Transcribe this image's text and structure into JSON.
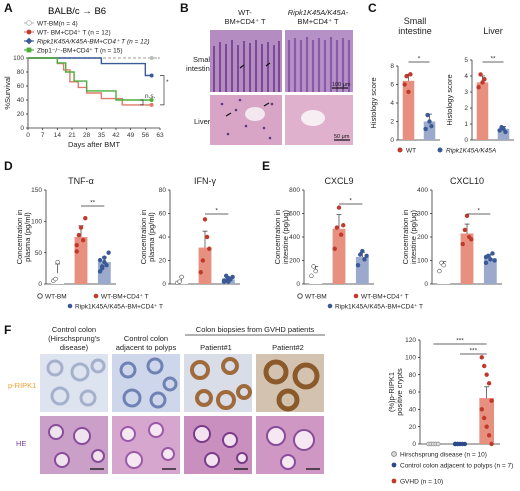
{
  "colors": {
    "wt_bm": "#bdbdbd",
    "wt_cd4": "#e07a6a",
    "ripk1": "#3a5a97",
    "zbp1": "#4cad3c",
    "gvhd_point": "#c0392b",
    "prip_label": "#f0a030",
    "he_label": "#7a3c9a"
  },
  "panel_A": {
    "letter": "A",
    "title": "BALB/c → B6",
    "legend": [
      "WT-BM(n = 4)",
      "WT- BM+CD4⁺ T (n = 12)",
      "Ripk1K45A/K45A-BM+CD4⁺ T (n = 12)",
      "Zbp1⁻/⁻-BM+CD4⁺ T (n = 15)"
    ],
    "sig_labels": [
      "*",
      "n.s."
    ]
  },
  "panel_B": {
    "letter": "B",
    "col_headers": [
      "WT-\nBM+CD4⁺ T",
      "Ripk1K45A/K45A-\nBM+CD4⁺ T"
    ],
    "col_header_lines": [
      [
        "WT-",
        "BM+CD4⁺ T"
      ],
      [
        "Ripk1K45A/K45A-",
        "BM+CD4⁺ T"
      ]
    ],
    "row_labels": [
      [
        "Small",
        "intestine"
      ],
      [
        "Liver"
      ]
    ],
    "scalebars": [
      "100 μm",
      "50 μm"
    ]
  },
  "panel_C": {
    "letter": "C",
    "legend": [
      "WT",
      "Ripk1K45A/K45A"
    ]
  },
  "panel_D": {
    "letter": "D",
    "legend": [
      "WT-BM",
      "WT-BM+CD4⁺ T",
      "Ripk1K45A/K45A-BM+CD4⁺ T"
    ]
  },
  "panel_E": {
    "letter": "E",
    "legend": [
      "WT-BM",
      "WT-BM+CD4⁺ T",
      "Ripk1K45A/K45A-BM+CD4⁺ T"
    ]
  },
  "panel_F": {
    "letter": "F",
    "col_headers": [
      [
        "Control colon",
        "(Hirschsprung's",
        "disease)"
      ],
      [
        "Control colon",
        "adjacent to polyps"
      ],
      [
        "Patient#1"
      ],
      [
        "Patient#2"
      ]
    ],
    "group_header": "Colon biopsies from GVHD patients",
    "row_labels": [
      "p-RIPK1",
      "HE"
    ],
    "legend": [
      "Hirschsprung disease (n = 10)",
      "Control colon adjacent to polyps (n = 7)",
      "GVHD (n = 10)"
    ]
  },
  "chart_data": [
    {
      "id": "A",
      "type": "line",
      "xlabel": "Days after BMT",
      "ylabel": "%Survival",
      "xticks": [
        0,
        7,
        14,
        21,
        28,
        35,
        42,
        49,
        56,
        63
      ],
      "yticks": [
        0,
        20,
        40,
        60,
        80,
        100
      ],
      "xlim": [
        0,
        63
      ],
      "ylim": [
        0,
        100
      ],
      "series": [
        {
          "name": "WT-BM(n = 4)",
          "color": "#bdbdbd",
          "x": [
            0,
            63
          ],
          "y": [
            100,
            100
          ]
        },
        {
          "name": "WT- BM+CD4⁺ T (n = 12)",
          "color": "#e07a6a",
          "x": [
            0,
            14,
            17,
            20,
            24,
            28,
            35,
            45,
            56
          ],
          "y": [
            100,
            92,
            83,
            66,
            58,
            50,
            42,
            33,
            33
          ]
        },
        {
          "name": "Ripk1K45A/K45A-BM+CD4⁺ T (n = 12)",
          "color": "#3a5a97",
          "x": [
            0,
            35,
            56
          ],
          "y": [
            100,
            92,
            75
          ]
        },
        {
          "name": "Zbp1⁻/⁻-BM+CD4⁺ T (n = 15)",
          "color": "#4cad3c",
          "x": [
            0,
            14,
            18,
            22,
            28,
            42,
            56
          ],
          "y": [
            100,
            93,
            80,
            67,
            53,
            40,
            40
          ]
        }
      ]
    },
    {
      "id": "C-small-intestine",
      "type": "bar",
      "title": "Small intestine",
      "ylabel": "Histology score",
      "yticks": [
        0,
        2,
        4,
        6,
        8
      ],
      "ylim": [
        0,
        8
      ],
      "categories": [
        "WT",
        "Ripk1K45A/K45A"
      ],
      "values": [
        6.4,
        2.0
      ],
      "errors": [
        0.7,
        0.8
      ],
      "points": [
        [
          6.0,
          6.9,
          5.2,
          7.1
        ],
        [
          1.2,
          2.7,
          2.0,
          1.5
        ]
      ],
      "sig": "*"
    },
    {
      "id": "C-liver",
      "type": "bar",
      "title": "Liver",
      "ylabel": "Histology score",
      "yticks": [
        0,
        1,
        2,
        3,
        4,
        5
      ],
      "ylim": [
        0,
        5
      ],
      "categories": [
        "WT",
        "Ripk1K45A/K45A"
      ],
      "values": [
        3.6,
        0.7
      ],
      "errors": [
        0.4,
        0.15
      ],
      "points": [
        [
          3.3,
          4.1,
          3.6,
          3.8
        ],
        [
          0.6,
          0.8,
          0.7,
          0.5
        ]
      ],
      "sig": "**"
    },
    {
      "id": "D-TNF",
      "type": "bar",
      "title": "TNF-α",
      "ylabel": "Concentration in plasma (pg/ml)",
      "yticks": [
        0,
        50,
        100,
        150
      ],
      "ylim": [
        0,
        150
      ],
      "categories": [
        "WT-BM",
        "WT-BM+CD4⁺ T",
        "Ripk1K45A/K45A-BM+CD4⁺ T"
      ],
      "values": [
        17,
        75,
        35
      ],
      "errors": [
        15,
        18,
        8
      ],
      "points": [
        [
          5,
          8,
          35
        ],
        [
          52,
          78,
          90,
          70,
          105,
          62
        ],
        [
          20,
          28,
          42,
          30,
          50,
          38,
          25,
          35
        ]
      ],
      "sig": "**"
    },
    {
      "id": "D-IFN",
      "type": "bar",
      "title": "IFN-γ",
      "ylabel": "Concentration in plasma (pg/ml)",
      "yticks": [
        0,
        20,
        40,
        60,
        80
      ],
      "ylim": [
        0,
        80
      ],
      "categories": [
        "WT-BM",
        "WT-BM+CD4⁺ T",
        "Ripk1K45A/K45A-BM+CD4⁺ T"
      ],
      "values": [
        3,
        31,
        4
      ],
      "errors": [
        3,
        14,
        2
      ],
      "points": [
        [
          1,
          2,
          6
        ],
        [
          10,
          20,
          55,
          40,
          30
        ],
        [
          2,
          3,
          5,
          4,
          6,
          3,
          7,
          2
        ]
      ],
      "sig": "*"
    },
    {
      "id": "E-CXCL9",
      "type": "bar",
      "title": "CXCL9",
      "ylabel": "Concentration in intestine (pg/μg)",
      "yticks": [
        0,
        200,
        400,
        600,
        800
      ],
      "ylim": [
        0,
        800
      ],
      "categories": [
        "WT-BM",
        "WT-BM+CD4⁺ T",
        "Ripk1K45A/K45A-BM+CD4⁺ T"
      ],
      "values": [
        110,
        470,
        230
      ],
      "errors": [
        40,
        120,
        40
      ],
      "points": [
        [
          70,
          150,
          110
        ],
        [
          300,
          480,
          650,
          420,
          500
        ],
        [
          160,
          250,
          280,
          210,
          240
        ]
      ],
      "sig": "*"
    },
    {
      "id": "E-CXCL10",
      "type": "bar",
      "title": "CXCL10",
      "ylabel": "Concentration in intestine (pg/μg)",
      "yticks": [
        0,
        100,
        200,
        300,
        400
      ],
      "ylim": [
        0,
        400
      ],
      "categories": [
        "WT-BM",
        "WT-BM+CD4⁺ T",
        "Ripk1K45A/K45A-BM+CD4⁺ T"
      ],
      "values": [
        75,
        215,
        110
      ],
      "errors": [
        20,
        40,
        15
      ],
      "points": [
        [
          55,
          90,
          80
        ],
        [
          170,
          230,
          290,
          200,
          190
        ],
        [
          90,
          120,
          105,
          130,
          100,
          115
        ]
      ],
      "sig": "*"
    },
    {
      "id": "F-quant",
      "type": "bar",
      "ylabel": "(%)p-RIPK1 positive crypts",
      "yticks": [
        0,
        20,
        40,
        60,
        80,
        100,
        120
      ],
      "ylim": [
        0,
        120
      ],
      "categories": [
        "Hirschsprung disease (n = 10)",
        "Control colon adjacent to polyps (n = 7)",
        "GVHD (n = 10)"
      ],
      "values": [
        0,
        0,
        53
      ],
      "errors": [
        0,
        0,
        13
      ],
      "points": [
        [
          0,
          0,
          0,
          0,
          0,
          0,
          0,
          0,
          0,
          0
        ],
        [
          0,
          0,
          0,
          0,
          0,
          0,
          0
        ],
        [
          100,
          90,
          80,
          70,
          50,
          40,
          30,
          20,
          10,
          0
        ]
      ],
      "sig": [
        "***",
        "***"
      ]
    }
  ]
}
